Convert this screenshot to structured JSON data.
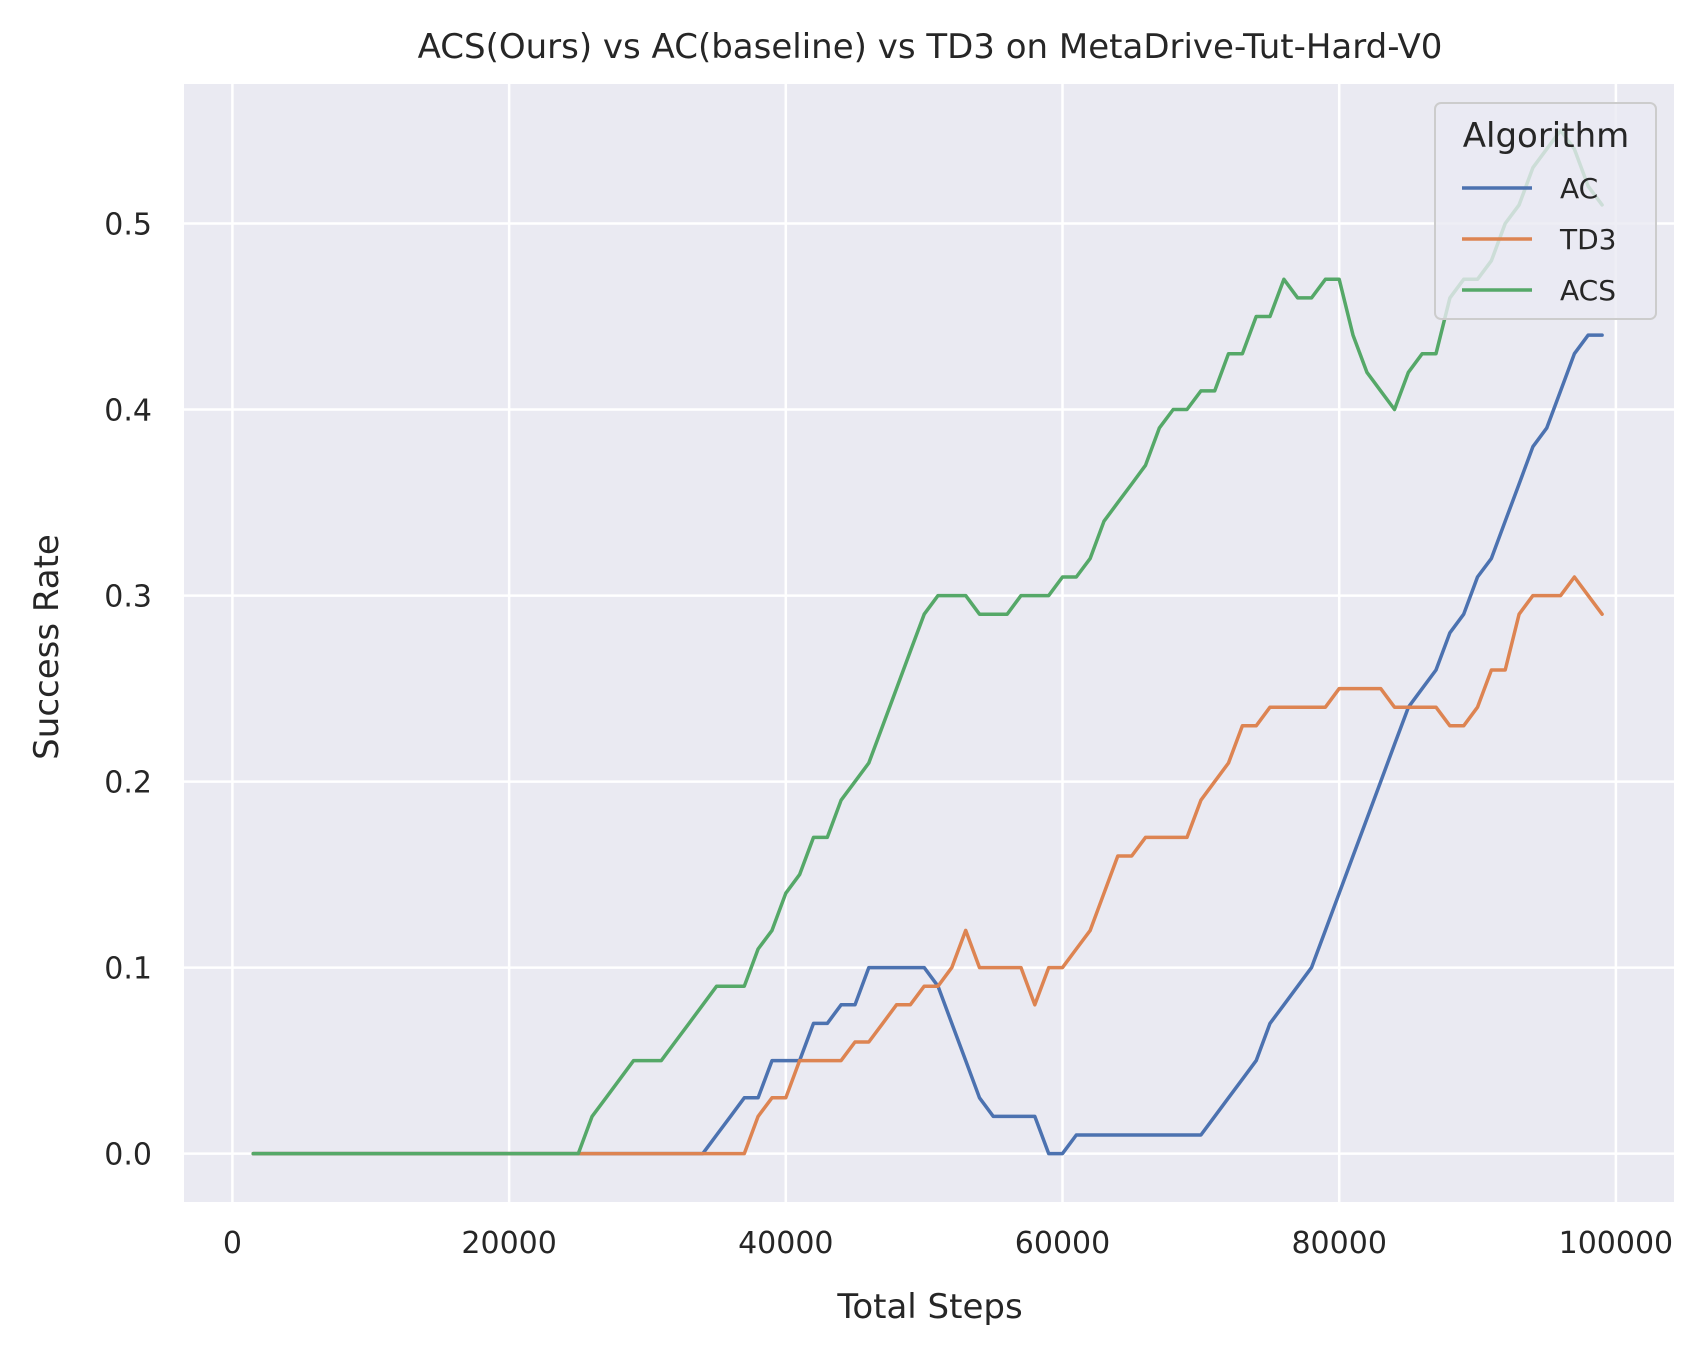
{
  "chart_data": {
    "type": "line",
    "title": "ACS(Ours) vs AC(baseline) vs TD3 on MetaDrive-Tut-Hard-V0",
    "xlabel": "Total Steps",
    "ylabel": "Success Rate",
    "xlim": [
      -3500,
      104200
    ],
    "ylim": [
      -0.026,
      0.575
    ],
    "xticks": [
      0,
      20000,
      40000,
      60000,
      80000,
      100000
    ],
    "yticks": [
      0.0,
      0.1,
      0.2,
      0.3,
      0.4,
      0.5
    ],
    "xtick_labels": [
      "0",
      "20000",
      "40000",
      "60000",
      "80000",
      "100000"
    ],
    "ytick_labels": [
      "0.0",
      "0.1",
      "0.2",
      "0.3",
      "0.4",
      "0.5"
    ],
    "grid": true,
    "background": "#eaeaf2",
    "legend": {
      "title": "Algorithm",
      "placement": "top-right"
    },
    "series": [
      {
        "name": "AC",
        "color": "#4c72b0",
        "x": [
          1500,
          10000,
          20000,
          30000,
          34000,
          35000,
          36000,
          37000,
          38000,
          39000,
          40000,
          41000,
          42000,
          43000,
          44000,
          45000,
          46000,
          47000,
          48000,
          49000,
          50000,
          51000,
          52000,
          53000,
          54000,
          55000,
          56000,
          57000,
          58000,
          59000,
          60000,
          61000,
          62000,
          63000,
          64000,
          65000,
          66000,
          67000,
          68000,
          69000,
          70000,
          71000,
          72000,
          73000,
          74000,
          75000,
          76000,
          77000,
          78000,
          79000,
          80000,
          81000,
          82000,
          83000,
          84000,
          85000,
          86000,
          87000,
          88000,
          89000,
          90000,
          91000,
          92000,
          93000,
          94000,
          95000,
          96000,
          97000,
          98000,
          99000
        ],
        "y": [
          0,
          0,
          0,
          0,
          0,
          0.01,
          0.02,
          0.03,
          0.03,
          0.05,
          0.05,
          0.05,
          0.07,
          0.07,
          0.08,
          0.08,
          0.1,
          0.1,
          0.1,
          0.1,
          0.1,
          0.09,
          0.07,
          0.05,
          0.03,
          0.02,
          0.02,
          0.02,
          0.02,
          0,
          0,
          0.01,
          0.01,
          0.01,
          0.01,
          0.01,
          0.01,
          0.01,
          0.01,
          0.01,
          0.01,
          0.02,
          0.03,
          0.04,
          0.05,
          0.07,
          0.08,
          0.09,
          0.1,
          0.12,
          0.14,
          0.16,
          0.18,
          0.2,
          0.22,
          0.24,
          0.25,
          0.26,
          0.28,
          0.29,
          0.31,
          0.32,
          0.34,
          0.36,
          0.38,
          0.39,
          0.41,
          0.43,
          0.44,
          0.44
        ]
      },
      {
        "name": "TD3",
        "color": "#dd8452",
        "x": [
          1500,
          10000,
          20000,
          30000,
          37000,
          38000,
          39000,
          40000,
          41000,
          42000,
          43000,
          44000,
          45000,
          46000,
          47000,
          48000,
          49000,
          50000,
          51000,
          52000,
          53000,
          54000,
          55000,
          56000,
          57000,
          58000,
          59000,
          60000,
          61000,
          62000,
          63000,
          64000,
          65000,
          66000,
          67000,
          68000,
          69000,
          70000,
          71000,
          72000,
          73000,
          74000,
          75000,
          76000,
          77000,
          78000,
          79000,
          80000,
          81000,
          82000,
          83000,
          84000,
          85000,
          86000,
          87000,
          88000,
          89000,
          90000,
          91000,
          92000,
          93000,
          94000,
          95000,
          96000,
          97000,
          98000,
          99000
        ],
        "y": [
          0,
          0,
          0,
          0,
          0,
          0.02,
          0.03,
          0.03,
          0.05,
          0.05,
          0.05,
          0.05,
          0.06,
          0.06,
          0.07,
          0.08,
          0.08,
          0.09,
          0.09,
          0.1,
          0.12,
          0.1,
          0.1,
          0.1,
          0.1,
          0.08,
          0.1,
          0.1,
          0.11,
          0.12,
          0.14,
          0.16,
          0.16,
          0.17,
          0.17,
          0.17,
          0.17,
          0.19,
          0.2,
          0.21,
          0.23,
          0.23,
          0.24,
          0.24,
          0.24,
          0.24,
          0.24,
          0.25,
          0.25,
          0.25,
          0.25,
          0.24,
          0.24,
          0.24,
          0.24,
          0.23,
          0.23,
          0.24,
          0.26,
          0.26,
          0.29,
          0.3,
          0.3,
          0.3,
          0.31,
          0.3,
          0.29
        ]
      },
      {
        "name": "ACS",
        "color": "#55a868",
        "x": [
          1500,
          10000,
          20000,
          25000,
          26000,
          27000,
          28000,
          29000,
          30000,
          31000,
          32000,
          33000,
          34000,
          35000,
          36000,
          37000,
          38000,
          39000,
          40000,
          41000,
          42000,
          43000,
          44000,
          45000,
          46000,
          47000,
          48000,
          49000,
          50000,
          51000,
          52000,
          53000,
          54000,
          55000,
          56000,
          57000,
          58000,
          59000,
          60000,
          61000,
          62000,
          63000,
          64000,
          65000,
          66000,
          67000,
          68000,
          69000,
          70000,
          71000,
          72000,
          73000,
          74000,
          75000,
          76000,
          77000,
          78000,
          79000,
          80000,
          81000,
          82000,
          83000,
          84000,
          85000,
          86000,
          87000,
          88000,
          89000,
          90000,
          91000,
          92000,
          93000,
          94000,
          95000,
          96000,
          97000,
          98000,
          99000
        ],
        "y": [
          0,
          0,
          0,
          0,
          0.02,
          0.03,
          0.04,
          0.05,
          0.05,
          0.05,
          0.06,
          0.07,
          0.08,
          0.09,
          0.09,
          0.09,
          0.11,
          0.12,
          0.14,
          0.15,
          0.17,
          0.17,
          0.19,
          0.2,
          0.21,
          0.23,
          0.25,
          0.27,
          0.29,
          0.3,
          0.3,
          0.3,
          0.29,
          0.29,
          0.29,
          0.3,
          0.3,
          0.3,
          0.31,
          0.31,
          0.32,
          0.34,
          0.35,
          0.36,
          0.37,
          0.39,
          0.4,
          0.4,
          0.41,
          0.41,
          0.43,
          0.43,
          0.45,
          0.45,
          0.47,
          0.46,
          0.46,
          0.47,
          0.47,
          0.44,
          0.42,
          0.41,
          0.4,
          0.42,
          0.43,
          0.43,
          0.46,
          0.47,
          0.47,
          0.48,
          0.5,
          0.51,
          0.53,
          0.54,
          0.55,
          0.54,
          0.52,
          0.51
        ]
      }
    ]
  }
}
